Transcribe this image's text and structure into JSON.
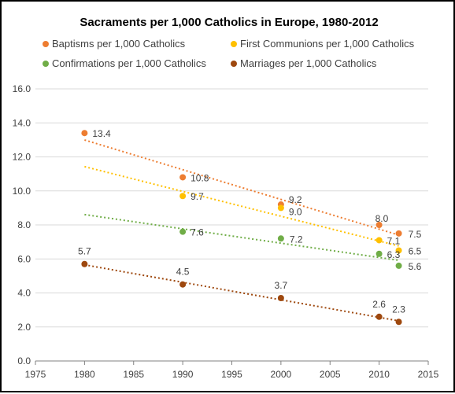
{
  "chart_data": {
    "type": "scatter",
    "title": "Sacraments per 1,000 Catholics in Europe, 1980-2012",
    "xlabel": "",
    "ylabel": "",
    "xlim": [
      1975,
      2015
    ],
    "ylim": [
      0,
      16
    ],
    "x_ticks": [
      1975,
      1980,
      1985,
      1990,
      1995,
      2000,
      2005,
      2010,
      2015
    ],
    "y_ticks": [
      "0.0",
      "2.0",
      "4.0",
      "6.0",
      "8.0",
      "10.0",
      "12.0",
      "14.0",
      "16.0"
    ],
    "grid": "horizontal",
    "legend_position": "top",
    "trendlines": "linear, dotted",
    "series": [
      {
        "name": "Baptisms per 1,000 Catholics",
        "color": "#ed7d31",
        "points": [
          {
            "x": 1980,
            "y": 13.4,
            "label": "13.4"
          },
          {
            "x": 1990,
            "y": 10.8,
            "label": "10.8"
          },
          {
            "x": 2000,
            "y": 9.2,
            "label": "9.2"
          },
          {
            "x": 2010,
            "y": 8.0,
            "label": "8.0"
          },
          {
            "x": 2012,
            "y": 7.5,
            "label": "7.5"
          }
        ]
      },
      {
        "name": "First Communions per 1,000 Catholics",
        "color": "#ffc000",
        "points": [
          {
            "x": 1990,
            "y": 9.7,
            "label": "9.7"
          },
          {
            "x": 2000,
            "y": 9.0,
            "label": "9.0"
          },
          {
            "x": 2010,
            "y": 7.1,
            "label": "7.1"
          },
          {
            "x": 2012,
            "y": 6.5,
            "label": "6.5"
          }
        ]
      },
      {
        "name": "Confirmations per 1,000 Catholics",
        "color": "#70ad47",
        "points": [
          {
            "x": 1990,
            "y": 7.6,
            "label": "7.6"
          },
          {
            "x": 2000,
            "y": 7.2,
            "label": "7.2"
          },
          {
            "x": 2010,
            "y": 6.3,
            "label": "6.3"
          },
          {
            "x": 2012,
            "y": 5.6,
            "label": "5.6"
          }
        ]
      },
      {
        "name": "Marriages per 1,000 Catholics",
        "color": "#9e480e",
        "points": [
          {
            "x": 1980,
            "y": 5.7,
            "label": "5.7"
          },
          {
            "x": 1990,
            "y": 4.5,
            "label": "4.5"
          },
          {
            "x": 2000,
            "y": 3.7,
            "label": "3.7"
          },
          {
            "x": 2010,
            "y": 2.6,
            "label": "2.6"
          },
          {
            "x": 2012,
            "y": 2.3,
            "label": "2.3"
          }
        ]
      }
    ]
  }
}
